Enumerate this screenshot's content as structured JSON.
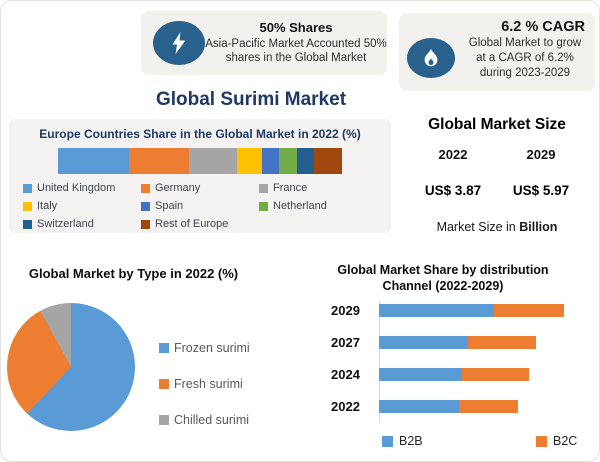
{
  "colors": {
    "navy": "#1f3864",
    "icon_blue": "#27618c",
    "panel_bg": "#f2f1ee",
    "value_blue": "#2ba3dc"
  },
  "header": {
    "shares_box": {
      "icon": "lightning-icon",
      "title": "50% Shares",
      "lines": [
        "Asia-Pacific Market Accounted 50%",
        "shares in the Global Market"
      ]
    },
    "cagr_box": {
      "icon": "flame-icon",
      "title": "6.2 % CAGR",
      "lines": [
        "Global Market to grow",
        "at a CAGR of 6.2%",
        "during 2023-2029"
      ]
    }
  },
  "main_title": "Global Surimi Market",
  "market_size": {
    "title": "Global Market Size",
    "years": [
      "2022",
      "2029"
    ],
    "values": [
      "US$ 3.87",
      "US$ 5.97"
    ],
    "footnote_plain": "Market Size in ",
    "footnote_bold": "Billion"
  },
  "chart_data": [
    {
      "id": "europe-share",
      "type": "bar",
      "stacked": true,
      "orientation": "horizontal",
      "title": "Europe Countries Share in the Global Market in 2022 (%)",
      "categories": [
        "United Kingdom",
        "Germany",
        "France",
        "Italy",
        "Spain",
        "Netherland",
        "Switzerland",
        "Rest of Europe"
      ],
      "values": [
        25,
        21,
        17,
        9,
        6,
        6,
        6,
        10
      ],
      "colors": [
        "#5B9BD5",
        "#ED7D31",
        "#A5A5A5",
        "#FFC000",
        "#4472C4",
        "#70AD47",
        "#255E91",
        "#9E480E"
      ],
      "unit": "%",
      "legend_position": "bottom-grid"
    },
    {
      "id": "type-pie",
      "type": "pie",
      "title": "Global Market by Type in 2022 (%)",
      "labels": [
        "Frozen surimi",
        "Fresh surimi",
        "Chilled surimi"
      ],
      "values": [
        62,
        30,
        8
      ],
      "colors": [
        "#5B9BD5",
        "#ED7D31",
        "#A5A5A5"
      ],
      "unit": "%",
      "legend_position": "right"
    },
    {
      "id": "distribution-channel",
      "type": "bar",
      "stacked": true,
      "orientation": "horizontal",
      "title": "Global Market Share by distribution Channel (2022-2029)",
      "categories": [
        "2029",
        "2027",
        "2024",
        "2022"
      ],
      "series": [
        {
          "name": "B2B",
          "color": "#5B9BD5",
          "values": [
            62,
            48,
            45,
            43
          ]
        },
        {
          "name": "B2C",
          "color": "#ED7D31",
          "values": [
            38,
            37,
            36,
            32
          ]
        }
      ],
      "xlim": [
        0,
        100
      ],
      "grid": false,
      "legend_position": "bottom"
    }
  ]
}
